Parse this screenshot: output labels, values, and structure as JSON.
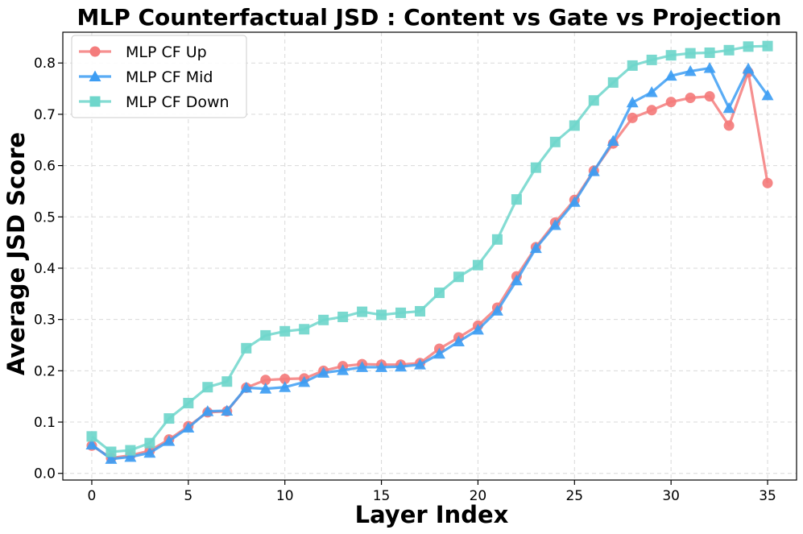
{
  "chart_data": {
    "type": "line",
    "title": "MLP Counterfactual JSD : Content vs Gate vs Projection",
    "xlabel": "Layer Index",
    "ylabel": "Average JSD Score",
    "xlim": [
      -1.5,
      36.5
    ],
    "ylim": [
      -0.013,
      0.86
    ],
    "xticks": [
      0,
      5,
      10,
      15,
      20,
      25,
      30,
      35
    ],
    "xtick_labels": [
      "0",
      "5",
      "10",
      "15",
      "20",
      "25",
      "30",
      "35"
    ],
    "yticks": [
      0.0,
      0.1,
      0.2,
      0.3,
      0.4,
      0.5,
      0.6,
      0.7,
      0.8
    ],
    "ytick_labels": [
      "0.0",
      "0.1",
      "0.2",
      "0.3",
      "0.4",
      "0.5",
      "0.6",
      "0.7",
      "0.8"
    ],
    "grid": true,
    "legend_position": "top-left",
    "x": [
      0,
      1,
      2,
      3,
      4,
      5,
      6,
      7,
      8,
      9,
      10,
      11,
      12,
      13,
      14,
      15,
      16,
      17,
      18,
      19,
      20,
      21,
      22,
      23,
      24,
      25,
      26,
      27,
      28,
      29,
      30,
      31,
      32,
      33,
      34,
      35
    ],
    "series": [
      {
        "name": "MLP CF Up",
        "marker": "circle",
        "color": "#f47c7c",
        "values": [
          0.054,
          0.03,
          0.035,
          0.044,
          0.066,
          0.092,
          0.119,
          0.121,
          0.167,
          0.182,
          0.184,
          0.185,
          0.2,
          0.209,
          0.213,
          0.212,
          0.212,
          0.215,
          0.243,
          0.265,
          0.288,
          0.323,
          0.384,
          0.441,
          0.489,
          0.533,
          0.59,
          0.643,
          0.693,
          0.708,
          0.724,
          0.732,
          0.735,
          0.678,
          0.782,
          0.566
        ]
      },
      {
        "name": "MLP CF Mid",
        "marker": "triangle",
        "color": "#3d9df3",
        "values": [
          0.056,
          0.028,
          0.032,
          0.04,
          0.063,
          0.089,
          0.121,
          0.122,
          0.167,
          0.165,
          0.168,
          0.178,
          0.196,
          0.201,
          0.207,
          0.207,
          0.208,
          0.212,
          0.233,
          0.257,
          0.28,
          0.317,
          0.376,
          0.439,
          0.484,
          0.529,
          0.589,
          0.648,
          0.723,
          0.743,
          0.775,
          0.784,
          0.79,
          0.712,
          0.789,
          0.737
        ]
      },
      {
        "name": "MLP CF Down",
        "marker": "square",
        "color": "#6fd6cb",
        "values": [
          0.072,
          0.042,
          0.045,
          0.059,
          0.107,
          0.137,
          0.168,
          0.179,
          0.244,
          0.269,
          0.277,
          0.281,
          0.299,
          0.305,
          0.315,
          0.309,
          0.313,
          0.316,
          0.352,
          0.383,
          0.406,
          0.456,
          0.534,
          0.596,
          0.646,
          0.678,
          0.727,
          0.762,
          0.795,
          0.806,
          0.815,
          0.819,
          0.82,
          0.825,
          0.832,
          0.833
        ]
      }
    ]
  }
}
